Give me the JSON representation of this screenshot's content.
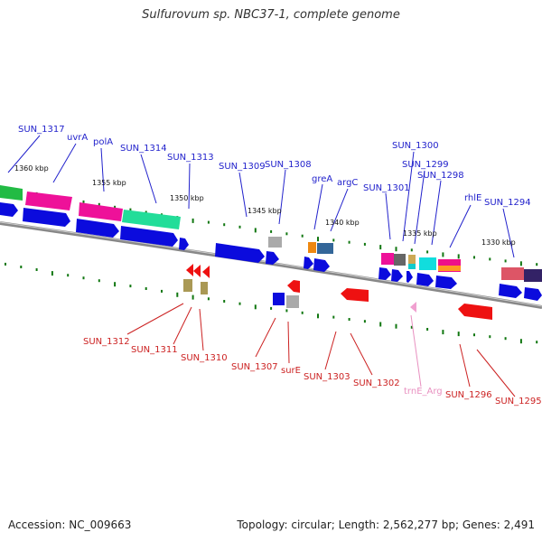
{
  "title_prefix": "Sulfurovum sp. NBC37-1, complete genome",
  "footer": {
    "accession": "Accession: NC_009663",
    "summary": "Topology: circular; Length: 2,562,277 bp; Genes: 2,491"
  },
  "colors": {
    "forward_label": "#2222cc",
    "reverse_label": "#cc2222",
    "rna_label": "#e890c0",
    "forward_cds": "#0b0bdd",
    "reverse_cds": "#ee1111",
    "backbone": "#888888",
    "tick": "#117711"
  },
  "kbp_ticks": [
    "1360 kbp",
    "1355 kbp",
    "1350 kbp",
    "1345 kbp",
    "1340 kbp",
    "1335 kbp",
    "1330 kbp"
  ],
  "forward_labels": [
    "SUN_1317",
    "uvrA",
    "polA",
    "SUN_1314",
    "SUN_1313",
    "SUN_1309",
    "SUN_1308",
    "greA",
    "argC",
    "SUN_1301",
    "SUN_1300",
    "SUN_1299",
    "SUN_1298",
    "rhlE",
    "SUN_1294"
  ],
  "reverse_labels": [
    "SUN_1312",
    "SUN_1311",
    "SUN_1310",
    "SUN_1307",
    "surE",
    "SUN_1303",
    "SUN_1302",
    "trnE_Arg",
    "SUN_1296",
    "SUN_1295"
  ]
}
